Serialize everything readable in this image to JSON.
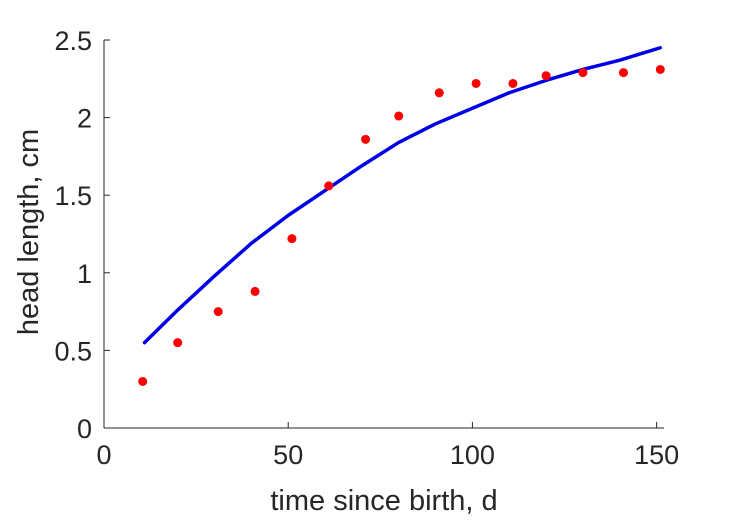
{
  "chart_data": {
    "type": "scatter",
    "title": "",
    "xlabel": "time since birth, d",
    "ylabel": "head length, cm",
    "xlim": [
      0,
      152
    ],
    "ylim": [
      0,
      2.5
    ],
    "xticks": [
      0,
      50,
      100,
      150
    ],
    "yticks": [
      0,
      0.5,
      1,
      1.5,
      2,
      2.5
    ],
    "xtick_labels": [
      "0",
      "50",
      "100",
      "150"
    ],
    "ytick_labels": [
      "0",
      "0.5",
      "1",
      "1.5",
      "2",
      "2.5"
    ],
    "grid": false,
    "series": [
      {
        "kind": "scatter",
        "color": "#ff0000",
        "x": [
          10.5,
          20,
          31,
          41,
          51,
          61,
          71,
          80,
          91,
          101,
          111,
          120,
          130,
          141,
          151
        ],
        "y": [
          0.3,
          0.55,
          0.75,
          0.88,
          1.22,
          1.56,
          1.86,
          2.01,
          2.16,
          2.22,
          2.22,
          2.27,
          2.29,
          2.29,
          2.31
        ]
      },
      {
        "kind": "line",
        "color": "#0000e6",
        "x": [
          11,
          20,
          30,
          40,
          50,
          60,
          70,
          80,
          90,
          100,
          110,
          120,
          130,
          140,
          151
        ],
        "y": [
          0.55,
          0.76,
          0.98,
          1.19,
          1.37,
          1.53,
          1.69,
          1.84,
          1.96,
          2.06,
          2.16,
          2.24,
          2.31,
          2.37,
          2.45
        ]
      }
    ]
  }
}
